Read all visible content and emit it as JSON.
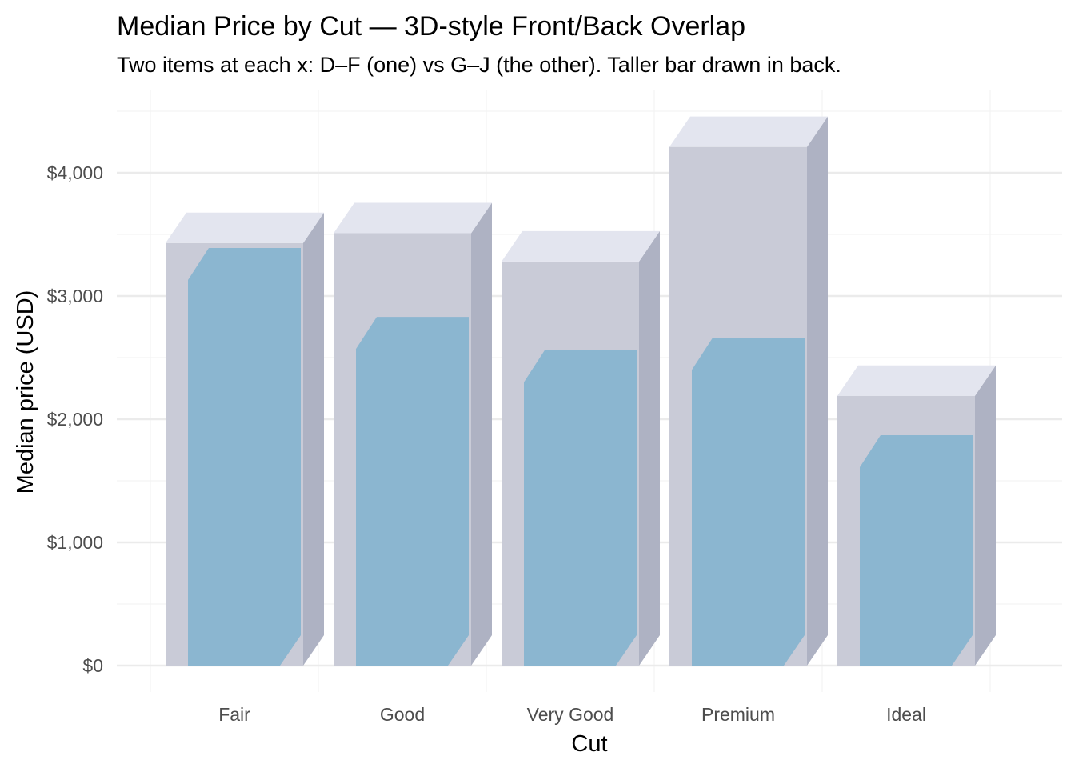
{
  "chart_data": {
    "type": "bar",
    "title": "Median Price by Cut — 3D-style Front/Back Overlap",
    "subtitle": "Two items at each x: D–F (one) vs G–J (the other). Taller bar drawn in back.",
    "xlabel": "Cut",
    "ylabel": "Median price (USD)",
    "categories": [
      "Fair",
      "Good",
      "Very Good",
      "Premium",
      "Ideal"
    ],
    "series": [
      {
        "name": "D–F",
        "values": [
          3430,
          2830,
          2560,
          2660,
          1870
        ]
      },
      {
        "name": "G–J",
        "values": [
          3390,
          3510,
          3280,
          4210,
          2190
        ]
      }
    ],
    "ylim": [
      0,
      4500
    ],
    "yticks": [
      0,
      1000,
      2000,
      3000,
      4000
    ],
    "ytick_labels": [
      "$0",
      "$1,000",
      "$2,000",
      "$3,000",
      "$4,000"
    ],
    "grid": true,
    "legend": "none",
    "colors": {
      "back_front": "#c9cbd7",
      "back_top": "#e3e5ef",
      "back_side": "#aeb2c3",
      "front_bar": "#8bb6d0",
      "grid_major": "#ebebeb",
      "grid_minor": "#f3f3f3"
    }
  }
}
